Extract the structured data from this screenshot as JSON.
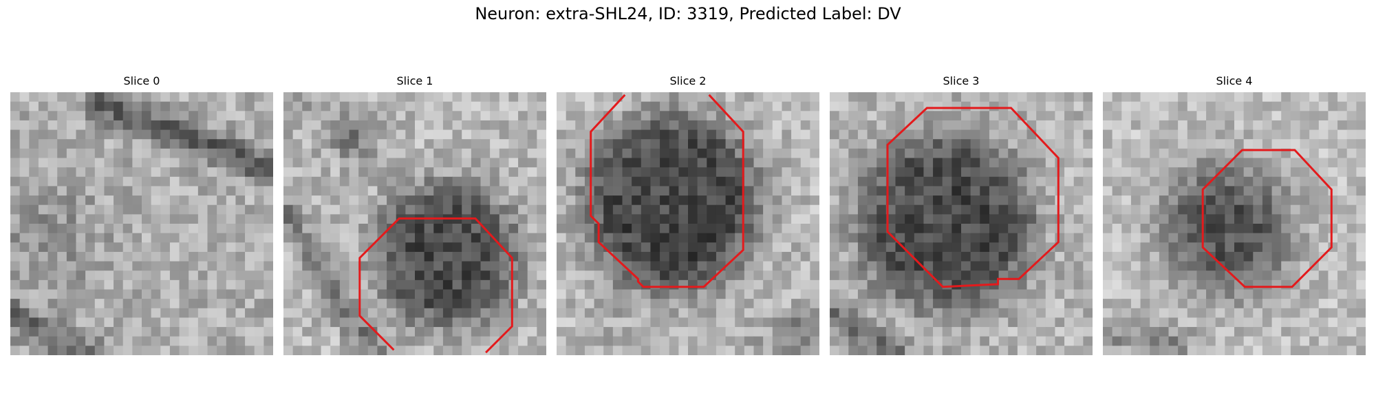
{
  "figure": {
    "title": "Neuron: extra-SHL24, ID: 3319, Predicted Label: DV"
  },
  "colors": {
    "background": "#ffffff",
    "outline": "#e31a1c",
    "text": "#000000"
  },
  "panels": [
    {
      "title": "Slice 0"
    },
    {
      "title": "Slice 1"
    },
    {
      "title": "Slice 2"
    },
    {
      "title": "Slice 3"
    },
    {
      "title": "Slice 4"
    }
  ]
}
